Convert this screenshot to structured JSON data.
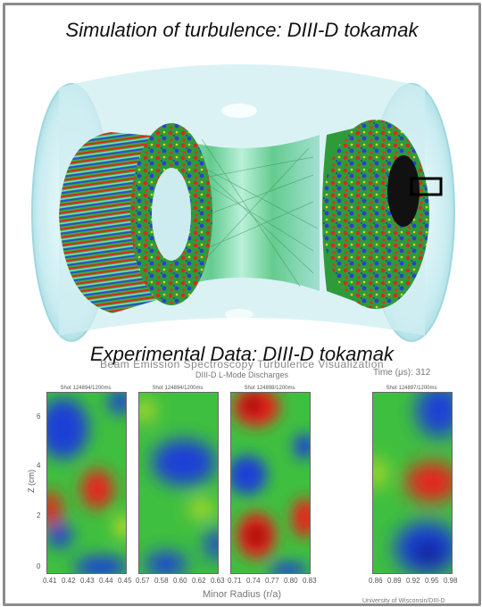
{
  "top_title": "Simulation of turbulence:  DIII-D tokamak",
  "mid_title": "Experimental Data:  DIII-D tokamak",
  "bes": {
    "title": "Beam Emission Spectroscopy Turbulence Visualization",
    "subtitle": "DIII-D L-Mode Discharges",
    "time_label": "Time (μs): 312",
    "ylabel": "Z (cm)",
    "xlabel": "Minor Radius (r/a)",
    "credit": "University of Wisconsin/DIII-D",
    "y_ticks": [
      "6",
      "4",
      "2",
      "0"
    ],
    "panels": [
      {
        "shot": "Shot 124894/1200ms",
        "xticks": [
          "0.41",
          "0.42",
          "0.43",
          "0.44",
          "0.45"
        ]
      },
      {
        "shot": "Shot 124894/1200ms",
        "xticks": [
          "0.57",
          "0.58",
          "0.60",
          "0.62",
          "0.63"
        ]
      },
      {
        "shot": "Shot 124898/1200ms",
        "xticks": [
          "0.71",
          "0.74",
          "0.77",
          "0.80",
          "0.83"
        ]
      },
      {
        "shot": "Shot 124897/1200ms",
        "xticks": [
          "0.86",
          "0.89",
          "0.92",
          "0.95",
          "0.98"
        ]
      }
    ]
  },
  "colors": {
    "red": "#e8201a",
    "green": "#3fbf3f",
    "blue": "#1a3fd6",
    "plasma_glass": "#bfe9ee"
  }
}
